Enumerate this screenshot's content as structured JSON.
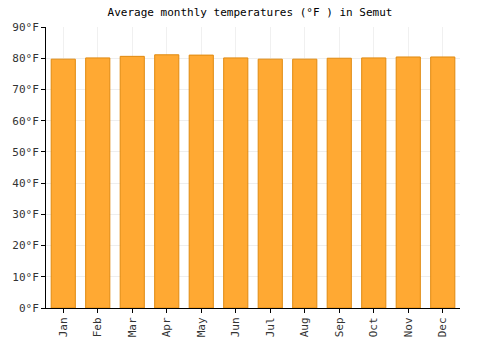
{
  "chart_data": {
    "type": "bar",
    "title": "Average monthly temperatures (°F ) in Semut",
    "categories": [
      "Jan",
      "Feb",
      "Mar",
      "Apr",
      "May",
      "Jun",
      "Jul",
      "Aug",
      "Sep",
      "Oct",
      "Nov",
      "Dec"
    ],
    "values": [
      79.7,
      80.1,
      80.6,
      81.1,
      81.0,
      80.1,
      79.7,
      79.7,
      80.0,
      80.1,
      80.4,
      80.4
    ],
    "color": "#ffa933",
    "ylim": [
      0,
      90
    ],
    "yticks": [
      {
        "value": 0,
        "label": "0°F"
      },
      {
        "value": 10,
        "label": "10°F"
      },
      {
        "value": 20,
        "label": "20°F"
      },
      {
        "value": 30,
        "label": "30°F"
      },
      {
        "value": 40,
        "label": "40°F"
      },
      {
        "value": 50,
        "label": "50°F"
      },
      {
        "value": 60,
        "label": "60°F"
      },
      {
        "value": 70,
        "label": "70°F"
      },
      {
        "value": 80,
        "label": "80°F"
      },
      {
        "value": 90,
        "label": "90°F"
      }
    ],
    "grid": true
  }
}
